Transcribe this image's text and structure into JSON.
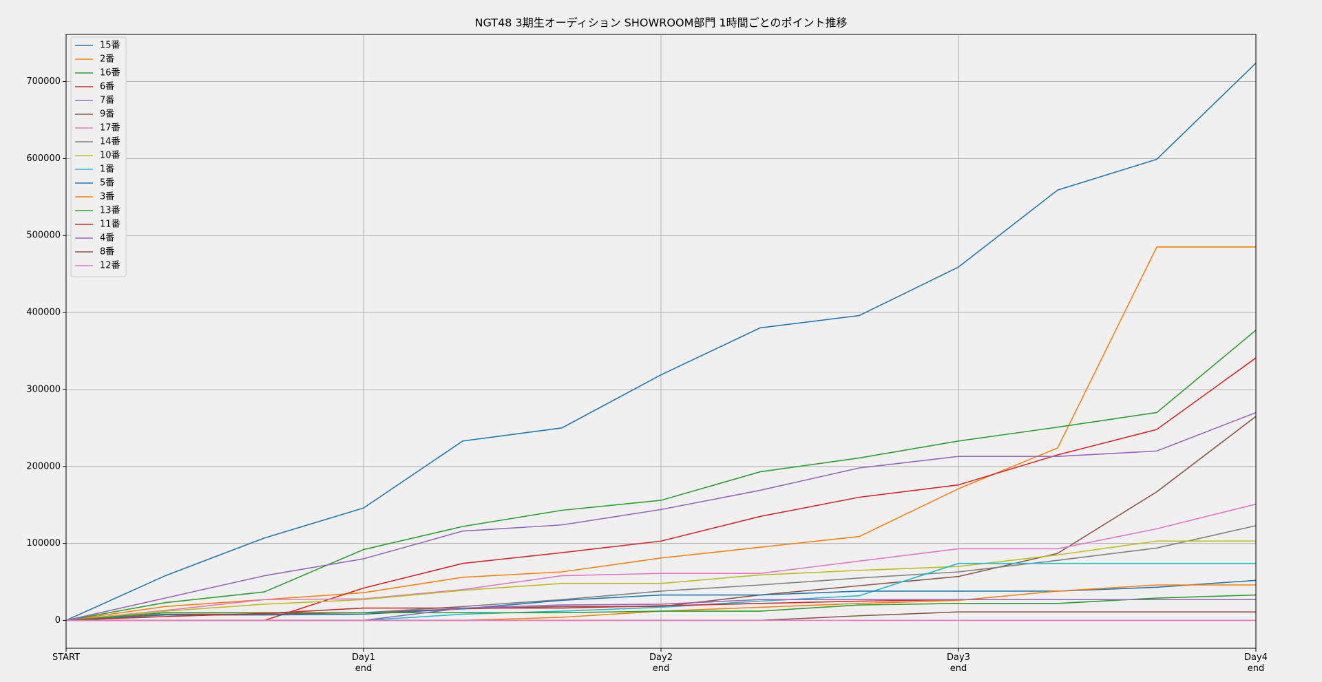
{
  "chart_data": {
    "type": "line",
    "title": "NGT48 3期生オーディション SHOWROOM部門 1時間ごとのポイント推移",
    "x": [
      0,
      1,
      2,
      3,
      4,
      5,
      6,
      7,
      8,
      9,
      10,
      11,
      12
    ],
    "xlim": [
      0,
      12
    ],
    "xticks": [
      {
        "value": 0,
        "label": "START"
      },
      {
        "value": 3,
        "label": "Day1\nend"
      },
      {
        "value": 6,
        "label": "Day2\nend"
      },
      {
        "value": 9,
        "label": "Day3\nend"
      },
      {
        "value": 12,
        "label": "Day4\nend"
      }
    ],
    "ylim": [
      -36250,
      761250
    ],
    "yticks": [
      0,
      100000,
      200000,
      300000,
      400000,
      500000,
      600000,
      700000
    ],
    "grid": true,
    "legend": "upper-left",
    "series": [
      {
        "name": "15番",
        "color": "#1f77b4",
        "values": [
          0,
          58000,
          107000,
          146000,
          233000,
          250000,
          319000,
          380000,
          396000,
          459000,
          559000,
          599000,
          724000
        ]
      },
      {
        "name": "2番",
        "color": "#ff7f0e",
        "values": [
          0,
          18000,
          27000,
          36000,
          56000,
          63000,
          81000,
          95000,
          109000,
          171000,
          224000,
          485000,
          485000
        ]
      },
      {
        "name": "16番",
        "color": "#2ca02c",
        "values": [
          0,
          23000,
          37000,
          92000,
          122000,
          143000,
          156000,
          193000,
          211000,
          233000,
          251000,
          270000,
          377000
        ]
      },
      {
        "name": "6番",
        "color": "#d62728",
        "values": [
          0,
          0,
          0,
          42000,
          74000,
          88000,
          103000,
          135000,
          160000,
          176000,
          215000,
          248000,
          341000
        ]
      },
      {
        "name": "7番",
        "color": "#9467bd",
        "values": [
          0,
          29000,
          58000,
          80000,
          116000,
          124000,
          144000,
          169000,
          198000,
          213000,
          213000,
          220000,
          270000
        ]
      },
      {
        "name": "9番",
        "color": "#8c564b",
        "values": [
          0,
          8000,
          8000,
          10000,
          15000,
          18000,
          18000,
          33000,
          45000,
          57000,
          87000,
          167000,
          265000
        ]
      },
      {
        "name": "17番",
        "color": "#e377c2",
        "values": [
          0,
          13000,
          27000,
          28000,
          40000,
          58000,
          61000,
          61000,
          77000,
          93000,
          93000,
          119000,
          151000
        ]
      },
      {
        "name": "14番",
        "color": "#7f7f7f",
        "values": [
          0,
          10000,
          10000,
          10000,
          18000,
          27000,
          38000,
          46000,
          55000,
          63000,
          78000,
          94000,
          123000
        ]
      },
      {
        "name": "10番",
        "color": "#bcbd22",
        "values": [
          0,
          12000,
          21000,
          27000,
          39000,
          48000,
          48000,
          59000,
          65000,
          70000,
          85000,
          103000,
          103000
        ]
      },
      {
        "name": "1番",
        "color": "#17becf",
        "values": [
          0,
          0,
          0,
          0,
          8000,
          12000,
          17000,
          25000,
          32000,
          74000,
          74000,
          74000,
          74000
        ]
      },
      {
        "name": "5番",
        "color": "#1f77b4",
        "values": [
          0,
          7000,
          7000,
          8000,
          15000,
          26000,
          33000,
          33000,
          38000,
          38000,
          38000,
          43000,
          52000
        ]
      },
      {
        "name": "3番",
        "color": "#ff7f0e",
        "values": [
          0,
          0,
          0,
          0,
          0,
          4000,
          12000,
          17000,
          22000,
          26000,
          38000,
          46000,
          46000
        ]
      },
      {
        "name": "13番",
        "color": "#2ca02c",
        "values": [
          0,
          10000,
          10000,
          10000,
          10000,
          10000,
          12000,
          12000,
          20000,
          22000,
          22000,
          29000,
          33000
        ]
      },
      {
        "name": "11番",
        "color": "#d62728",
        "values": [
          0,
          5000,
          9000,
          16000,
          16000,
          16000,
          19000,
          22000,
          25000,
          27000,
          27000,
          27000,
          27000
        ]
      },
      {
        "name": "4番",
        "color": "#9467bd",
        "values": [
          0,
          0,
          0,
          0,
          16000,
          20000,
          21000,
          27000,
          27000,
          27000,
          27000,
          27000,
          27000
        ]
      },
      {
        "name": "8番",
        "color": "#8c564b",
        "values": [
          0,
          0,
          0,
          0,
          0,
          0,
          0,
          0,
          6000,
          11000,
          11000,
          11000,
          11000
        ]
      },
      {
        "name": "12番",
        "color": "#e377c2",
        "values": [
          0,
          0,
          0,
          0,
          0,
          0,
          0,
          0,
          0,
          0,
          0,
          0,
          0
        ]
      }
    ]
  }
}
